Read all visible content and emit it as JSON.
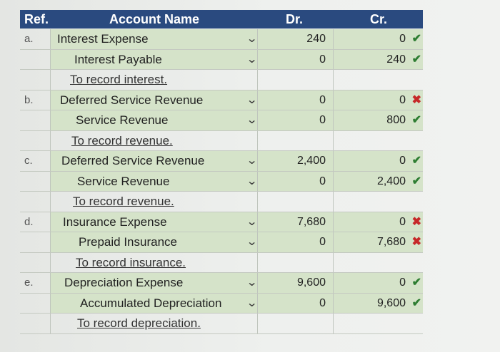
{
  "header": {
    "ref": "Ref.",
    "account": "Account Name",
    "dr": "Dr.",
    "cr": "Cr."
  },
  "entries": [
    {
      "ref": "a.",
      "lines": [
        {
          "account": "Interest Expense",
          "dr": "240",
          "cr": "0",
          "mark": "✔",
          "mark_ok": true
        },
        {
          "account": "Interest Payable",
          "dr": "0",
          "cr": "240",
          "mark": "✔",
          "mark_ok": true
        }
      ],
      "memo": "To record interest."
    },
    {
      "ref": "b.",
      "lines": [
        {
          "account": "Deferred Service Revenue",
          "dr": "0",
          "cr": "0",
          "mark": "✖",
          "mark_ok": false
        },
        {
          "account": "Service Revenue",
          "dr": "0",
          "cr": "800",
          "mark": "✔",
          "mark_ok": true
        }
      ],
      "memo": "To record revenue."
    },
    {
      "ref": "c.",
      "lines": [
        {
          "account": "Deferred Service Revenue",
          "dr": "2,400",
          "cr": "0",
          "mark": "✔",
          "mark_ok": true
        },
        {
          "account": "Service Revenue",
          "dr": "0",
          "cr": "2,400",
          "mark": "✔",
          "mark_ok": true
        }
      ],
      "memo": "To record revenue."
    },
    {
      "ref": "d.",
      "lines": [
        {
          "account": "Insurance Expense",
          "dr": "7,680",
          "cr": "0",
          "mark": "✖",
          "mark_ok": false
        },
        {
          "account": "Prepaid Insurance",
          "dr": "0",
          "cr": "7,680",
          "mark": "✖",
          "mark_ok": false
        }
      ],
      "memo": "To record insurance."
    },
    {
      "ref": "e.",
      "lines": [
        {
          "account": "Depreciation Expense",
          "dr": "9,600",
          "cr": "0",
          "mark": "✔",
          "mark_ok": true
        },
        {
          "account": "Accumulated Depreciation",
          "dr": "0",
          "cr": "9,600",
          "mark": "✔",
          "mark_ok": true
        }
      ],
      "memo": "To record depreciation."
    }
  ],
  "colors": {
    "header_bg": "#2a4a7f",
    "row_green": "#d5e3c9",
    "ok": "#2e7d32",
    "bad": "#c62828"
  }
}
